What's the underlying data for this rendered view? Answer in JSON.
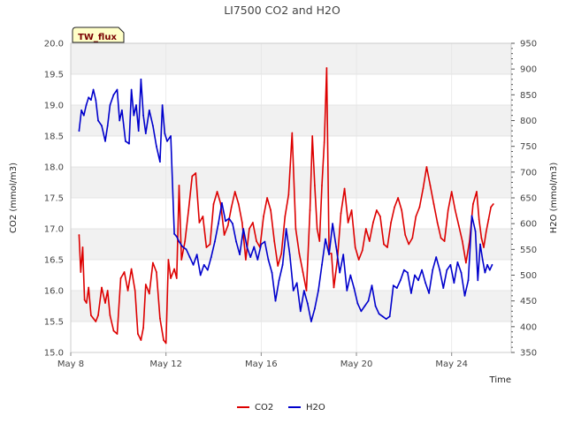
{
  "chart_data": {
    "type": "line",
    "title": "LI7500 CO2 and H2O",
    "badge": "TW_flux",
    "xlabel": "Time",
    "ylabel": "CO2 (mmol/m3)",
    "y2label": "H2O (mmol/m3)",
    "x_unit": "day of May",
    "xlim": [
      8,
      26.5
    ],
    "ylim": [
      15.0,
      20.0
    ],
    "y2lim": [
      350,
      950
    ],
    "x_ticks": [
      {
        "value": 8,
        "label": "May 8"
      },
      {
        "value": 12,
        "label": "May 12"
      },
      {
        "value": 16,
        "label": "May 16"
      },
      {
        "value": 20,
        "label": "May 20"
      },
      {
        "value": 24,
        "label": "May 24"
      }
    ],
    "y_ticks": [
      "15.0",
      "15.5",
      "16.0",
      "16.5",
      "17.0",
      "17.5",
      "18.0",
      "18.5",
      "19.0",
      "19.5",
      "20.0"
    ],
    "y2_ticks": [
      "350",
      "400",
      "450",
      "500",
      "550",
      "600",
      "650",
      "700",
      "750",
      "800",
      "850",
      "900",
      "950"
    ],
    "series": [
      {
        "name": "CO2",
        "axis": "left",
        "color": "#dd0000",
        "x": [
          8.35,
          8.42,
          8.5,
          8.58,
          8.66,
          8.75,
          8.85,
          8.95,
          9.05,
          9.15,
          9.3,
          9.45,
          9.55,
          9.65,
          9.8,
          9.95,
          10.1,
          10.25,
          10.4,
          10.55,
          10.7,
          10.82,
          10.95,
          11.05,
          11.15,
          11.3,
          11.45,
          11.6,
          11.75,
          11.9,
          12.0,
          12.1,
          12.2,
          12.35,
          12.45,
          12.55,
          12.65,
          12.8,
          12.95,
          13.1,
          13.25,
          13.4,
          13.55,
          13.7,
          13.85,
          14.0,
          14.15,
          14.3,
          14.45,
          14.6,
          14.75,
          14.9,
          15.05,
          15.2,
          15.35,
          15.5,
          15.65,
          15.8,
          15.95,
          16.1,
          16.25,
          16.4,
          16.55,
          16.7,
          16.85,
          17.0,
          17.15,
          17.3,
          17.45,
          17.6,
          17.75,
          17.9,
          18.05,
          18.15,
          18.25,
          18.35,
          18.45,
          18.55,
          18.65,
          18.75,
          18.85,
          18.95,
          19.05,
          19.2,
          19.35,
          19.5,
          19.65,
          19.8,
          19.95,
          20.1,
          20.25,
          20.4,
          20.55,
          20.7,
          20.85,
          21.0,
          21.15,
          21.3,
          21.45,
          21.6,
          21.75,
          21.9,
          22.05,
          22.2,
          22.35,
          22.5,
          22.65,
          22.8,
          22.95,
          23.1,
          23.25,
          23.4,
          23.55,
          23.7,
          23.85,
          24.0,
          24.15,
          24.3,
          24.45,
          24.6,
          24.75,
          24.9,
          25.05,
          25.15,
          25.25,
          25.35,
          25.45,
          25.55,
          25.65,
          25.75
        ],
        "values": [
          16.9,
          16.3,
          16.7,
          15.85,
          15.8,
          16.05,
          15.6,
          15.55,
          15.5,
          15.6,
          16.05,
          15.8,
          16.0,
          15.6,
          15.35,
          15.3,
          16.2,
          16.3,
          16.0,
          16.35,
          16.0,
          15.3,
          15.2,
          15.4,
          16.1,
          15.95,
          16.45,
          16.3,
          15.55,
          15.2,
          15.15,
          16.5,
          16.2,
          16.35,
          16.2,
          17.7,
          16.5,
          16.8,
          17.3,
          17.85,
          17.9,
          17.1,
          17.2,
          16.7,
          16.75,
          17.4,
          17.6,
          17.4,
          16.9,
          17.05,
          17.35,
          17.6,
          17.4,
          17.1,
          16.5,
          17.0,
          17.1,
          16.8,
          16.7,
          17.2,
          17.5,
          17.3,
          16.8,
          16.4,
          16.6,
          17.2,
          17.55,
          18.55,
          17.0,
          16.6,
          16.3,
          16.0,
          17.3,
          18.5,
          17.7,
          17.0,
          16.8,
          17.7,
          18.4,
          19.6,
          16.6,
          16.6,
          16.05,
          16.5,
          17.25,
          17.65,
          17.1,
          17.3,
          16.7,
          16.5,
          16.65,
          17.0,
          16.8,
          17.1,
          17.3,
          17.2,
          16.75,
          16.7,
          17.1,
          17.35,
          17.5,
          17.3,
          16.9,
          16.75,
          16.85,
          17.2,
          17.35,
          17.65,
          18.0,
          17.7,
          17.4,
          17.1,
          16.85,
          16.8,
          17.3,
          17.6,
          17.3,
          17.05,
          16.8,
          16.45,
          16.8,
          17.4,
          17.6,
          17.15,
          16.85,
          16.7,
          16.95,
          17.15,
          17.35,
          17.4
        ]
      },
      {
        "name": "H2O",
        "axis": "right",
        "color": "#0000cc",
        "x": [
          8.35,
          8.45,
          8.55,
          8.65,
          8.75,
          8.85,
          8.95,
          9.05,
          9.15,
          9.3,
          9.45,
          9.55,
          9.65,
          9.8,
          9.95,
          10.05,
          10.15,
          10.3,
          10.45,
          10.55,
          10.65,
          10.75,
          10.85,
          10.95,
          11.05,
          11.15,
          11.3,
          11.45,
          11.6,
          11.75,
          11.85,
          11.95,
          12.05,
          12.2,
          12.35,
          12.45,
          12.55,
          12.7,
          12.85,
          13.0,
          13.15,
          13.3,
          13.45,
          13.6,
          13.75,
          13.9,
          14.05,
          14.2,
          14.35,
          14.5,
          14.65,
          14.8,
          14.95,
          15.1,
          15.25,
          15.4,
          15.55,
          15.7,
          15.85,
          16.0,
          16.15,
          16.3,
          16.45,
          16.6,
          16.75,
          16.9,
          17.05,
          17.2,
          17.35,
          17.5,
          17.65,
          17.8,
          17.95,
          18.1,
          18.25,
          18.4,
          18.55,
          18.7,
          18.85,
          19.0,
          19.15,
          19.3,
          19.45,
          19.6,
          19.75,
          19.9,
          20.05,
          20.2,
          20.35,
          20.5,
          20.65,
          20.8,
          20.95,
          21.1,
          21.25,
          21.4,
          21.55,
          21.7,
          21.85,
          22.0,
          22.15,
          22.3,
          22.45,
          22.6,
          22.75,
          22.9,
          23.05,
          23.2,
          23.35,
          23.5,
          23.65,
          23.8,
          23.95,
          24.1,
          24.25,
          24.4,
          24.55,
          24.7,
          24.85,
          25.0,
          25.1,
          25.2,
          25.3,
          25.4,
          25.5,
          25.6,
          25.7
        ],
        "values": [
          780,
          820,
          810,
          830,
          845,
          840,
          860,
          840,
          800,
          790,
          760,
          790,
          830,
          850,
          860,
          800,
          820,
          760,
          755,
          860,
          810,
          830,
          780,
          880,
          810,
          775,
          820,
          790,
          750,
          720,
          830,
          775,
          760,
          770,
          580,
          575,
          565,
          555,
          550,
          535,
          520,
          540,
          500,
          520,
          510,
          535,
          565,
          600,
          640,
          605,
          610,
          600,
          565,
          540,
          590,
          555,
          535,
          555,
          530,
          560,
          565,
          530,
          505,
          450,
          490,
          520,
          590,
          540,
          470,
          485,
          430,
          470,
          445,
          410,
          435,
          470,
          520,
          570,
          540,
          600,
          555,
          505,
          540,
          470,
          500,
          475,
          445,
          430,
          440,
          450,
          480,
          440,
          425,
          420,
          415,
          420,
          480,
          475,
          490,
          510,
          505,
          465,
          500,
          490,
          510,
          485,
          465,
          510,
          535,
          510,
          475,
          510,
          520,
          485,
          525,
          505,
          460,
          490,
          615,
          585,
          490,
          560,
          530,
          505,
          520,
          510,
          520
        ]
      }
    ]
  }
}
